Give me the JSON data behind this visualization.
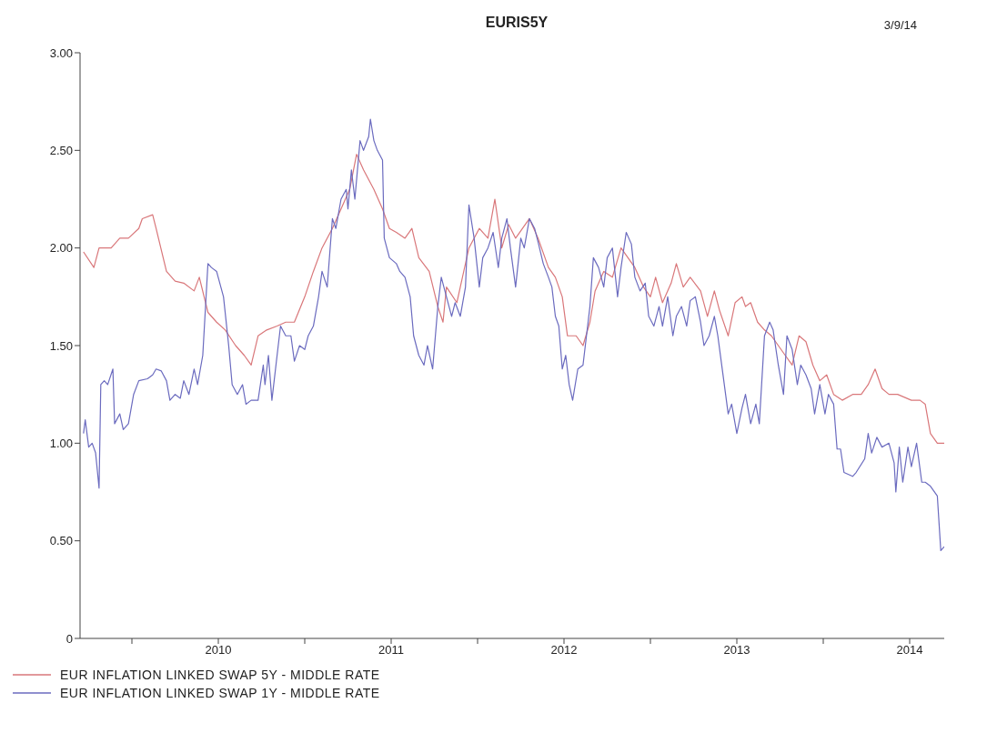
{
  "chart_data": {
    "type": "line",
    "title": "EURIS5Y",
    "annotations": [
      "3/9/14"
    ],
    "xlim": [
      2009.7,
      2014.7
    ],
    "xticks": [
      {
        "value": 2010,
        "label": null
      },
      {
        "value": 2010.5,
        "label": "2010"
      },
      {
        "value": 2011,
        "label": null
      },
      {
        "value": 2011.5,
        "label": "2011"
      },
      {
        "value": 2012,
        "label": null
      },
      {
        "value": 2012.5,
        "label": "2012"
      },
      {
        "value": 2013,
        "label": null
      },
      {
        "value": 2013.5,
        "label": "2013"
      },
      {
        "value": 2014,
        "label": null
      },
      {
        "value": 2014.5,
        "label": "2014"
      }
    ],
    "ylim": [
      0,
      3
    ],
    "yticks": [
      0,
      {
        "value": 0.5,
        "label": "0.50"
      },
      {
        "value": 1,
        "label": "1.00"
      },
      {
        "value": 1.5,
        "label": "1.50"
      },
      {
        "value": 2,
        "label": "2.00"
      },
      {
        "value": 2.5,
        "label": "2.50"
      },
      {
        "value": 3,
        "label": "3.00"
      }
    ],
    "legend": "bottom left",
    "marker": "none",
    "line_style": "solid",
    "series": [
      {
        "name": "EUR INFLATION LINKED SWAP 5Y - MIDDLE RATE",
        "color": "#d9777a",
        "x": [
          2009.72,
          2009.78,
          2009.81,
          2009.88,
          2009.93,
          2009.98,
          2010.04,
          2010.06,
          2010.12,
          2010.14,
          2010.2,
          2010.25,
          2010.3,
          2010.36,
          2010.39,
          2010.44,
          2010.49,
          2010.54,
          2010.6,
          2010.65,
          2010.69,
          2010.73,
          2010.78,
          2010.84,
          2010.89,
          2010.94,
          2011.0,
          2011.05,
          2011.1,
          2011.16,
          2011.21,
          2011.26,
          2011.3,
          2011.34,
          2011.4,
          2011.45,
          2011.49,
          2011.53,
          2011.58,
          2011.62,
          2011.66,
          2011.72,
          2011.77,
          2011.8,
          2011.82,
          2011.88,
          2011.9,
          2011.95,
          2012.01,
          2012.06,
          2012.1,
          2012.14,
          2012.18,
          2012.22,
          2012.26,
          2012.3,
          2012.35,
          2012.41,
          2012.45,
          2012.49,
          2012.52,
          2012.57,
          2012.61,
          2012.65,
          2012.68,
          2012.73,
          2012.78,
          2012.83,
          2012.87,
          2012.91,
          2012.96,
          2013.0,
          2013.03,
          2013.07,
          2013.12,
          2013.15,
          2013.19,
          2013.23,
          2013.29,
          2013.33,
          2013.37,
          2013.4,
          2013.45,
          2013.49,
          2013.53,
          2013.55,
          2013.58,
          2013.62,
          2013.66,
          2013.7,
          2013.74,
          2013.78,
          2013.82,
          2013.86,
          2013.9,
          2013.94,
          2013.98,
          2014.02,
          2014.06,
          2014.11,
          2014.17,
          2014.22,
          2014.26,
          2014.3,
          2014.34,
          2014.38,
          2014.43,
          2014.51,
          2014.56,
          2014.59,
          2014.62,
          2014.66,
          2014.7
        ],
        "values": [
          1.98,
          1.9,
          2.0,
          2.0,
          2.05,
          2.05,
          2.1,
          2.15,
          2.17,
          2.1,
          1.88,
          1.83,
          1.82,
          1.78,
          1.85,
          1.67,
          1.62,
          1.58,
          1.5,
          1.45,
          1.4,
          1.55,
          1.58,
          1.6,
          1.62,
          1.62,
          1.75,
          1.88,
          2.0,
          2.1,
          2.2,
          2.3,
          2.48,
          2.4,
          2.3,
          2.2,
          2.1,
          2.08,
          2.05,
          2.1,
          1.95,
          1.88,
          1.7,
          1.62,
          1.8,
          1.72,
          1.8,
          2.0,
          2.1,
          2.05,
          2.25,
          2.0,
          2.12,
          2.05,
          2.1,
          2.15,
          2.05,
          1.9,
          1.85,
          1.75,
          1.55,
          1.55,
          1.5,
          1.62,
          1.78,
          1.88,
          1.85,
          2.0,
          1.95,
          1.9,
          1.8,
          1.75,
          1.85,
          1.72,
          1.82,
          1.92,
          1.8,
          1.85,
          1.78,
          1.65,
          1.78,
          1.68,
          1.55,
          1.72,
          1.75,
          1.7,
          1.72,
          1.62,
          1.58,
          1.55,
          1.5,
          1.45,
          1.4,
          1.55,
          1.52,
          1.4,
          1.32,
          1.35,
          1.25,
          1.22,
          1.25,
          1.25,
          1.3,
          1.38,
          1.28,
          1.25,
          1.25,
          1.22,
          1.22,
          1.2,
          1.05,
          1.0,
          1.0
        ]
      },
      {
        "name": "EUR INFLATION LINKED SWAP 1Y - MIDDLE RATE",
        "color": "#6b6bbf",
        "x": [
          2009.72,
          2009.73,
          2009.75,
          2009.77,
          2009.79,
          2009.81,
          2009.82,
          2009.84,
          2009.86,
          2009.89,
          2009.9,
          2009.93,
          2009.95,
          2009.98,
          2010.01,
          2010.04,
          2010.09,
          2010.12,
          2010.14,
          2010.17,
          2010.2,
          2010.22,
          2010.25,
          2010.28,
          2010.3,
          2010.33,
          2010.36,
          2010.38,
          2010.41,
          2010.44,
          2010.46,
          2010.49,
          2010.53,
          2010.56,
          2010.58,
          2010.61,
          2010.64,
          2010.66,
          2010.69,
          2010.73,
          2010.76,
          2010.77,
          2010.79,
          2010.81,
          2010.84,
          2010.86,
          2010.89,
          2010.92,
          2010.94,
          2010.97,
          2011.0,
          2011.02,
          2011.05,
          2011.08,
          2011.1,
          2011.13,
          2011.16,
          2011.18,
          2011.21,
          2011.24,
          2011.25,
          2011.27,
          2011.29,
          2011.32,
          2011.34,
          2011.37,
          2011.38,
          2011.4,
          2011.42,
          2011.45,
          2011.46,
          2011.49,
          2011.53,
          2011.55,
          2011.58,
          2011.61,
          2011.63,
          2011.66,
          2011.69,
          2011.71,
          2011.74,
          2011.77,
          2011.79,
          2011.82,
          2011.85,
          2011.87,
          2011.9,
          2011.93,
          2011.95,
          2011.98,
          2012.01,
          2012.03,
          2012.06,
          2012.09,
          2012.12,
          2012.14,
          2012.17,
          2012.19,
          2012.22,
          2012.25,
          2012.27,
          2012.3,
          2012.33,
          2012.35,
          2012.38,
          2012.41,
          2012.43,
          2012.45,
          2012.47,
          2012.49,
          2012.51,
          2012.53,
          2012.55,
          2012.58,
          2012.61,
          2012.65,
          2012.67,
          2012.7,
          2012.73,
          2012.75,
          2012.78,
          2012.81,
          2012.83,
          2012.86,
          2012.89,
          2012.91,
          2012.94,
          2012.97,
          2012.99,
          2013.02,
          2013.05,
          2013.07,
          2013.1,
          2013.13,
          2013.15,
          2013.18,
          2013.21,
          2013.23,
          2013.26,
          2013.29,
          2013.31,
          2013.34,
          2013.37,
          2013.39,
          2013.42,
          2013.45,
          2013.47,
          2013.5,
          2013.53,
          2013.55,
          2013.58,
          2013.61,
          2013.63,
          2013.66,
          2013.69,
          2013.71,
          2013.74,
          2013.77,
          2013.79,
          2013.82,
          2013.85,
          2013.87,
          2013.9,
          2013.93,
          2013.95,
          2013.98,
          2014.01,
          2014.03,
          2014.06,
          2014.08,
          2014.1,
          2014.12,
          2014.17,
          2014.19,
          2014.24,
          2014.26,
          2014.28,
          2014.31,
          2014.34,
          2014.38,
          2014.41,
          2014.42,
          2014.44,
          2014.46,
          2014.49,
          2014.51,
          2014.54,
          2014.57,
          2014.59,
          2014.62,
          2014.66,
          2014.68,
          2014.7
        ],
        "values": [
          1.05,
          1.12,
          0.98,
          1.0,
          0.95,
          0.77,
          1.3,
          1.32,
          1.3,
          1.38,
          1.1,
          1.15,
          1.07,
          1.1,
          1.25,
          1.32,
          1.33,
          1.35,
          1.38,
          1.37,
          1.32,
          1.22,
          1.25,
          1.23,
          1.32,
          1.25,
          1.38,
          1.3,
          1.45,
          1.92,
          1.9,
          1.88,
          1.75,
          1.5,
          1.3,
          1.25,
          1.3,
          1.2,
          1.22,
          1.22,
          1.4,
          1.3,
          1.45,
          1.22,
          1.45,
          1.6,
          1.55,
          1.55,
          1.42,
          1.5,
          1.48,
          1.55,
          1.6,
          1.75,
          1.88,
          1.8,
          2.15,
          2.1,
          2.25,
          2.3,
          2.2,
          2.4,
          2.25,
          2.55,
          2.5,
          2.57,
          2.66,
          2.55,
          2.5,
          2.45,
          2.05,
          1.95,
          1.92,
          1.88,
          1.85,
          1.75,
          1.55,
          1.45,
          1.4,
          1.5,
          1.38,
          1.7,
          1.85,
          1.75,
          1.65,
          1.72,
          1.65,
          1.8,
          2.22,
          2.05,
          1.8,
          1.95,
          2.0,
          2.08,
          1.9,
          2.05,
          2.15,
          2.0,
          1.8,
          2.05,
          2.0,
          2.15,
          2.1,
          2.03,
          1.92,
          1.85,
          1.8,
          1.65,
          1.6,
          1.38,
          1.45,
          1.3,
          1.22,
          1.38,
          1.4,
          1.7,
          1.95,
          1.9,
          1.8,
          1.95,
          2.0,
          1.75,
          1.9,
          2.08,
          2.02,
          1.85,
          1.78,
          1.82,
          1.65,
          1.6,
          1.7,
          1.6,
          1.75,
          1.55,
          1.65,
          1.7,
          1.6,
          1.73,
          1.75,
          1.62,
          1.5,
          1.55,
          1.65,
          1.55,
          1.35,
          1.15,
          1.2,
          1.05,
          1.18,
          1.25,
          1.1,
          1.2,
          1.1,
          1.55,
          1.62,
          1.58,
          1.4,
          1.25,
          1.55,
          1.48,
          1.3,
          1.4,
          1.35,
          1.28,
          1.15,
          1.3,
          1.15,
          1.25,
          1.2,
          0.97,
          0.97,
          0.85,
          0.83,
          0.85,
          0.92,
          1.05,
          0.95,
          1.03,
          0.98,
          1.0,
          0.9,
          0.75,
          0.98,
          0.8,
          0.98,
          0.88,
          1.0,
          0.8,
          0.8,
          0.78,
          0.73,
          0.45,
          0.47
        ]
      }
    ]
  }
}
